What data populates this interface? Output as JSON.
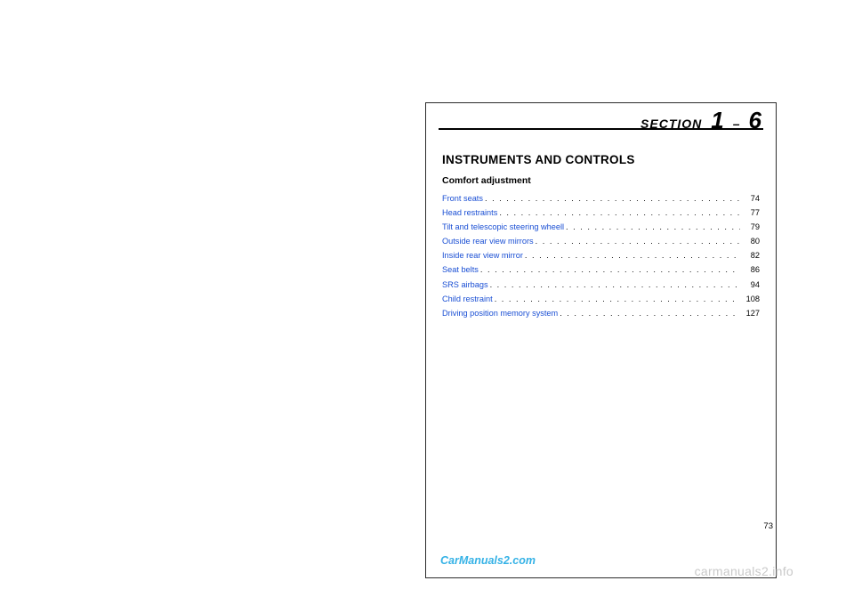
{
  "colors": {
    "link": "#1a4fd4",
    "text": "#000000",
    "watermark_inner": "#35b2e6",
    "watermark_outer": "#c9c9c9",
    "border": "#2b2b2b",
    "background": "#ffffff"
  },
  "typography": {
    "title_fontsize": 13.5,
    "subtitle_fontsize": 10.5,
    "toc_fontsize": 9.2,
    "section_word_fontsize": 14,
    "section_big_fontsize": 26
  },
  "section": {
    "label": "SECTION",
    "major": "1",
    "dash": "–",
    "minor": "6"
  },
  "title": "INSTRUMENTS AND CONTROLS",
  "subtitle": "Comfort adjustment",
  "toc": [
    {
      "label": "Front seats",
      "page": "74"
    },
    {
      "label": "Head restraints",
      "page": "77"
    },
    {
      "label": "Tilt and telescopic steering wheell",
      "page": "79"
    },
    {
      "label": "Outside rear view mirrors",
      "page": "80"
    },
    {
      "label": "Inside rear view mirror",
      "page": "82"
    },
    {
      "label": "Seat belts",
      "page": "86"
    },
    {
      "label": "SRS airbags",
      "page": "94"
    },
    {
      "label": "Child restraint",
      "page": "108"
    },
    {
      "label": "Driving position memory system",
      "page": "127"
    }
  ],
  "pagefoot": "73",
  "watermark_inner": "CarManuals2.com",
  "watermark_outer": "carmanuals2.info"
}
